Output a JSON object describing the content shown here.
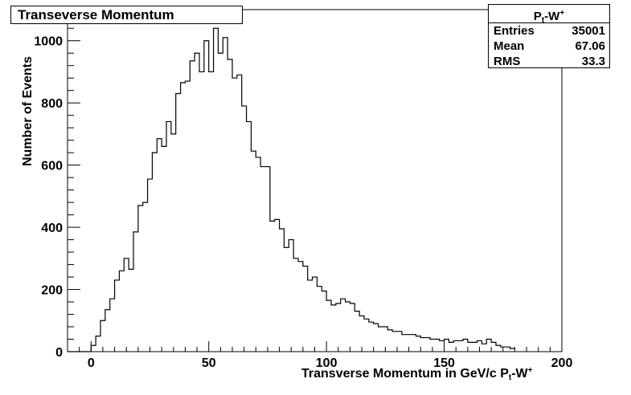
{
  "chart_data": {
    "type": "histogram",
    "title": "Transeverse Momentum",
    "xlabel_main": "Transverse Momentum in GeV/c P",
    "xlabel_sub": "t",
    "xlabel_tail": "-W",
    "xlabel_sup": "+",
    "ylabel": "Number of Events",
    "xlim": [
      -10,
      200
    ],
    "ylim": [
      0,
      1100
    ],
    "x_ticks": [
      0,
      50,
      100,
      150,
      200
    ],
    "y_ticks": [
      0,
      200,
      400,
      600,
      800,
      1000
    ],
    "bin_width": 2,
    "bin_start": -10,
    "values": [
      0,
      0,
      0,
      0,
      0,
      20,
      50,
      100,
      135,
      170,
      230,
      260,
      300,
      265,
      385,
      470,
      480,
      555,
      640,
      685,
      660,
      740,
      700,
      830,
      865,
      870,
      935,
      960,
      900,
      1000,
      900,
      1040,
      960,
      1010,
      940,
      880,
      890,
      790,
      740,
      645,
      625,
      595,
      595,
      420,
      425,
      395,
      335,
      360,
      300,
      290,
      275,
      230,
      240,
      210,
      195,
      165,
      150,
      155,
      170,
      160,
      155,
      130,
      115,
      105,
      95,
      90,
      80,
      80,
      70,
      65,
      65,
      55,
      55,
      55,
      50,
      45,
      45,
      40,
      40,
      35,
      40,
      30,
      35,
      35,
      40,
      30,
      30,
      35,
      25,
      40,
      30,
      20,
      15,
      15,
      10
    ],
    "stats": {
      "title_main": "P",
      "title_sub": "t",
      "title_tail": "-W",
      "title_sup": "+",
      "rows": [
        {
          "label": "Entries",
          "value": "35001"
        },
        {
          "label": "Mean",
          "value": "67.06"
        },
        {
          "label": "RMS",
          "value": "33.3"
        }
      ]
    }
  }
}
